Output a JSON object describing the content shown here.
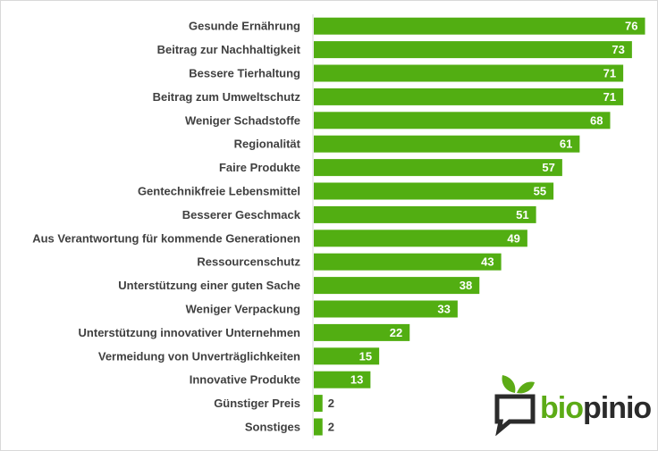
{
  "chart_data": {
    "type": "bar",
    "orientation": "horizontal",
    "categories": [
      "Gesunde Ernährung",
      "Beitrag zur Nachhaltigkeit",
      "Bessere Tierhaltung",
      "Beitrag zum Umweltschutz",
      "Weniger Schadstoffe",
      "Regionalität",
      "Faire Produkte",
      "Gentechnikfreie Lebensmittel",
      "Besserer Geschmack",
      "Aus Verantwortung für kommende Generationen",
      "Ressourcenschutz",
      "Unterstützung einer guten Sache",
      "Weniger Verpackung",
      "Unterstützung innovativer Unternehmen",
      "Vermeidung von Unverträglichkeiten",
      "Innovative Produkte",
      "Günstiger Preis",
      "Sonstiges"
    ],
    "values": [
      76,
      73,
      71,
      71,
      68,
      61,
      57,
      55,
      51,
      49,
      43,
      38,
      33,
      22,
      15,
      13,
      2,
      2
    ],
    "xlim": [
      0,
      80
    ],
    "bar_color": "#52ae12",
    "value_label_color_inside": "#ffffff",
    "value_label_color_outside": "#404040",
    "grid": false,
    "legend": "none"
  },
  "logo": {
    "brand_part1": "bio",
    "brand_part2": "pinio",
    "brand_color": "#5cab16",
    "dark_color": "#2b2b2b",
    "icon": "speech-bubble-sprout-icon"
  }
}
